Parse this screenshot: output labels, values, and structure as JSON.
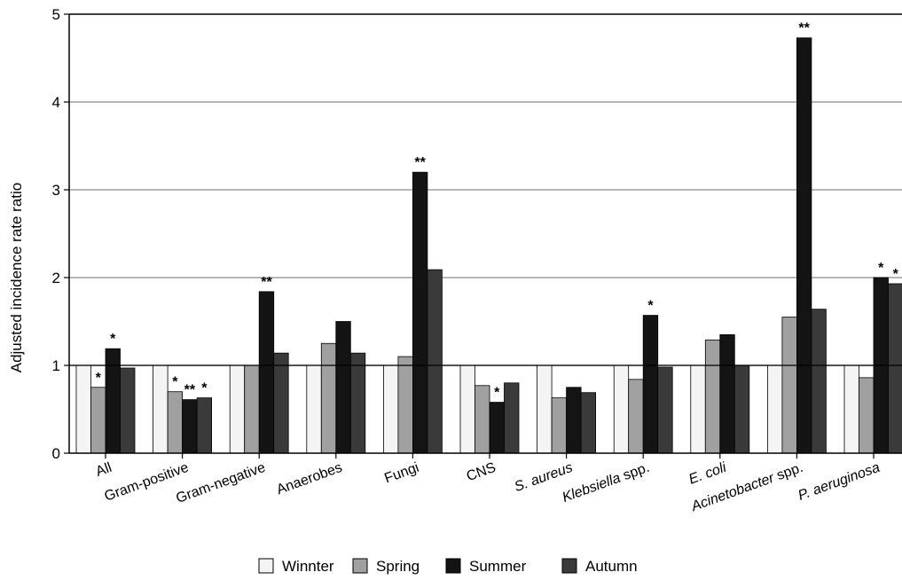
{
  "chart_data": {
    "type": "bar",
    "title": "",
    "xlabel": "",
    "ylabel": "Adjusted incidence rate ratio",
    "ylim": [
      0,
      5
    ],
    "yticks": [
      "0",
      "1",
      "2",
      "3",
      "4",
      "5"
    ],
    "grid": "horizontal",
    "legend_position": "bottom",
    "reference_line": 1,
    "categories": [
      {
        "parts": [
          {
            "text": "All",
            "italic": false
          }
        ]
      },
      {
        "parts": [
          {
            "text": "Gram-positive",
            "italic": false
          }
        ]
      },
      {
        "parts": [
          {
            "text": "Gram-negative",
            "italic": false
          }
        ]
      },
      {
        "parts": [
          {
            "text": "Anaerobes",
            "italic": false
          }
        ]
      },
      {
        "parts": [
          {
            "text": "Fungi",
            "italic": false
          }
        ]
      },
      {
        "parts": [
          {
            "text": "CNS",
            "italic": false
          }
        ]
      },
      {
        "parts": [
          {
            "text": "S. aureus",
            "italic": true
          }
        ]
      },
      {
        "parts": [
          {
            "text": "Klebsiella",
            "italic": true
          },
          {
            "text": " spp.",
            "italic": false
          }
        ]
      },
      {
        "parts": [
          {
            "text": "E. coli",
            "italic": true
          }
        ]
      },
      {
        "parts": [
          {
            "text": "Acinetobacter",
            "italic": true
          },
          {
            "text": " spp.",
            "italic": false
          }
        ]
      },
      {
        "parts": [
          {
            "text": "P. aeruginosa",
            "italic": true
          }
        ]
      }
    ],
    "series": [
      {
        "name": "Winnter",
        "color": "#f4f4f4",
        "values": [
          1.0,
          1.0,
          1.0,
          1.0,
          1.0,
          1.0,
          1.0,
          1.0,
          1.0,
          1.0,
          1.0
        ],
        "stars": [
          "",
          "",
          "",
          "",
          "",
          "",
          "",
          "",
          "",
          "",
          ""
        ]
      },
      {
        "name": "Spring",
        "color": "#a0a0a0",
        "values": [
          0.75,
          0.7,
          1.0,
          1.25,
          1.1,
          0.77,
          0.63,
          0.84,
          1.29,
          1.55,
          0.86
        ],
        "stars": [
          "*",
          "*",
          "",
          "",
          "",
          "",
          "",
          "",
          "",
          "",
          ""
        ]
      },
      {
        "name": "Summer",
        "color": "#141414",
        "values": [
          1.19,
          0.61,
          1.84,
          1.5,
          3.2,
          0.58,
          0.75,
          1.57,
          1.35,
          4.73,
          2.0
        ],
        "stars": [
          "*",
          "**",
          "**",
          "",
          "**",
          "*",
          "",
          "*",
          "",
          "**",
          "*"
        ]
      },
      {
        "name": "Autumn",
        "color": "#3a3a3a",
        "values": [
          0.97,
          0.63,
          1.14,
          1.14,
          2.09,
          0.8,
          0.69,
          0.98,
          1.0,
          1.64,
          1.93
        ],
        "stars": [
          "",
          "*",
          "",
          "",
          "",
          "",
          "",
          "",
          "",
          "",
          "*"
        ]
      }
    ]
  }
}
